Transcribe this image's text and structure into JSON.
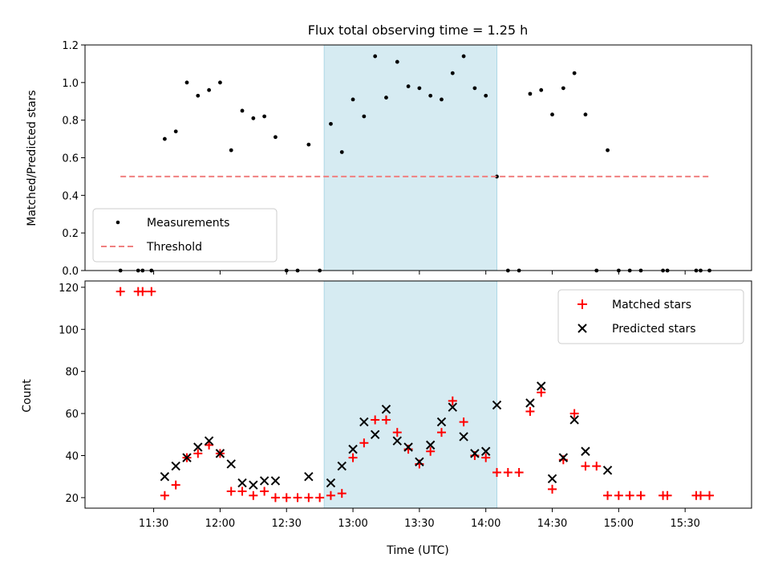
{
  "chart_data": [
    {
      "type": "scatter",
      "title": "Flux total observing time = 1.25 h",
      "ylabel": "Matched/Predicted stars",
      "xlim": [
        "10:59",
        "16:00"
      ],
      "ylim": [
        0,
        1.2
      ],
      "yticks": [
        "0.0",
        "0.2",
        "0.4",
        "0.6",
        "0.8",
        "1.0",
        "1.2"
      ],
      "highlight": {
        "start": "12:47",
        "end": "14:05",
        "color": "#add8e6"
      },
      "legend_position": "lower-left",
      "series": [
        {
          "name": "Measurements",
          "color": "#000000",
          "marker": "dot",
          "x": [
            "11:15",
            "11:23",
            "11:25",
            "11:29",
            "11:35",
            "11:40",
            "11:45",
            "11:50",
            "11:55",
            "12:00",
            "12:05",
            "12:10",
            "12:15",
            "12:20",
            "12:25",
            "12:30",
            "12:35",
            "12:40",
            "12:45",
            "12:50",
            "12:55",
            "13:00",
            "13:05",
            "13:10",
            "13:15",
            "13:20",
            "13:25",
            "13:30",
            "13:35",
            "13:40",
            "13:45",
            "13:50",
            "13:55",
            "14:00",
            "14:05",
            "14:10",
            "14:15",
            "14:20",
            "14:25",
            "14:30",
            "14:35",
            "14:40",
            "14:45",
            "14:50",
            "14:55",
            "15:00",
            "15:05",
            "15:10",
            "15:20",
            "15:22",
            "15:35",
            "15:37",
            "15:41"
          ],
          "y": [
            0,
            0,
            0,
            0,
            0.7,
            0.74,
            1.0,
            0.93,
            0.96,
            1.0,
            0.64,
            0.85,
            0.81,
            0.82,
            0.71,
            0,
            0,
            0.67,
            0,
            0.78,
            0.63,
            0.91,
            0.82,
            1.14,
            0.92,
            1.11,
            0.98,
            0.97,
            0.93,
            0.91,
            1.05,
            1.14,
            0.97,
            0.93,
            0.5,
            0,
            0,
            0.94,
            0.96,
            0.83,
            0.97,
            1.05,
            0.83,
            0,
            0.64,
            0,
            0,
            0,
            0,
            0,
            0,
            0,
            0
          ]
        },
        {
          "name": "Threshold",
          "color": "#f08080",
          "style": "dashed",
          "x": [
            "11:15",
            "15:41"
          ],
          "y": [
            0.5,
            0.5
          ]
        }
      ]
    },
    {
      "type": "scatter",
      "xlabel": "Time (UTC)",
      "ylabel": "Count",
      "xlim": [
        "10:59",
        "16:00"
      ],
      "ylim": [
        15,
        123
      ],
      "yticks": [
        "20",
        "40",
        "60",
        "80",
        "100",
        "120"
      ],
      "xticks": [
        "11:30",
        "12:00",
        "12:30",
        "13:00",
        "13:30",
        "14:00",
        "14:30",
        "15:00",
        "15:30"
      ],
      "highlight": {
        "start": "12:47",
        "end": "14:05",
        "color": "#add8e6"
      },
      "legend_position": "upper-right",
      "series": [
        {
          "name": "Matched stars",
          "color": "#ff0000",
          "marker": "plus",
          "x": [
            "11:15",
            "11:23",
            "11:25",
            "11:29",
            "11:35",
            "11:40",
            "11:45",
            "11:50",
            "11:55",
            "12:00",
            "12:05",
            "12:10",
            "12:15",
            "12:20",
            "12:25",
            "12:30",
            "12:35",
            "12:40",
            "12:45",
            "12:50",
            "12:55",
            "13:00",
            "13:05",
            "13:10",
            "13:15",
            "13:20",
            "13:25",
            "13:30",
            "13:35",
            "13:40",
            "13:45",
            "13:50",
            "13:55",
            "14:00",
            "14:05",
            "14:10",
            "14:15",
            "14:20",
            "14:25",
            "14:30",
            "14:35",
            "14:40",
            "14:45",
            "14:50",
            "14:55",
            "15:00",
            "15:05",
            "15:10",
            "15:20",
            "15:22",
            "15:35",
            "15:37",
            "15:41"
          ],
          "y": [
            118,
            118,
            118,
            118,
            21,
            26,
            39,
            41,
            45,
            41,
            23,
            23,
            21,
            23,
            20,
            20,
            20,
            20,
            20,
            21,
            22,
            39,
            46,
            57,
            57,
            51,
            43,
            36,
            42,
            51,
            66,
            56,
            40,
            39,
            32,
            32,
            32,
            61,
            70,
            24,
            38,
            60,
            35,
            35,
            21,
            21,
            21,
            21,
            21,
            21,
            21,
            21,
            21
          ]
        },
        {
          "name": "Predicted stars",
          "color": "#000000",
          "marker": "x",
          "x": [
            "11:35",
            "11:40",
            "11:45",
            "11:50",
            "11:55",
            "12:00",
            "12:05",
            "12:10",
            "12:15",
            "12:20",
            "12:25",
            "12:40",
            "12:50",
            "12:55",
            "13:00",
            "13:05",
            "13:10",
            "13:15",
            "13:20",
            "13:25",
            "13:30",
            "13:35",
            "13:40",
            "13:45",
            "13:50",
            "13:55",
            "14:00",
            "14:05",
            "14:20",
            "14:25",
            "14:30",
            "14:35",
            "14:40",
            "14:45",
            "14:55"
          ],
          "y": [
            30,
            35,
            39,
            44,
            47,
            41,
            36,
            27,
            26,
            28,
            28,
            30,
            27,
            35,
            43,
            56,
            50,
            62,
            47,
            44,
            37,
            45,
            56,
            63,
            49,
            41,
            42,
            64,
            65,
            73,
            29,
            39,
            57,
            42,
            33
          ]
        }
      ]
    }
  ]
}
